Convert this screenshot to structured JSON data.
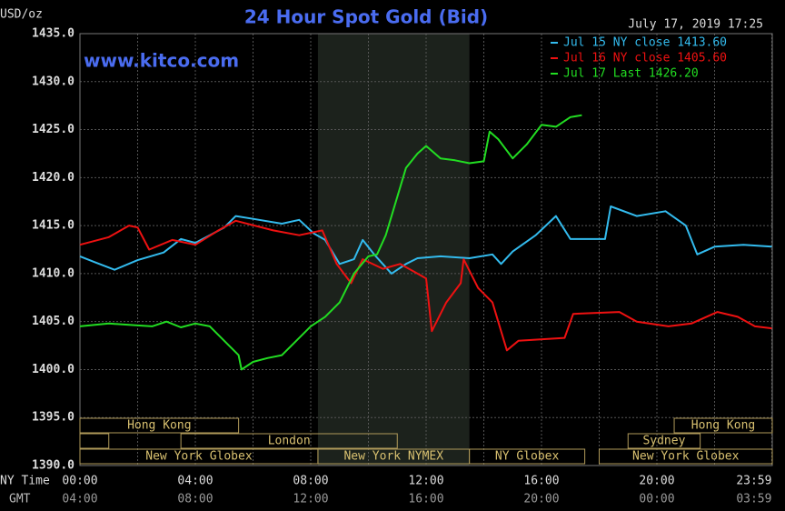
{
  "chart_data": {
    "type": "line",
    "title": "24 Hour Spot Gold (Bid)",
    "y_unit": "USD/oz",
    "timestamp": "July 17, 2019 17:25",
    "source": "www.kitco.com",
    "x_axis_labels": [
      "NY Time",
      "GMT"
    ],
    "xlim": [
      0,
      24
    ],
    "ylim": [
      1390,
      1435
    ],
    "xticks": [
      {
        "value": 0,
        "label": "00:00"
      },
      {
        "value": 4,
        "label": "04:00"
      },
      {
        "value": 8,
        "label": "08:00"
      },
      {
        "value": 12,
        "label": "12:00"
      },
      {
        "value": 16,
        "label": "16:00"
      },
      {
        "value": 20,
        "label": "20:00"
      },
      {
        "value": 23.983,
        "label": "23:59"
      }
    ],
    "x2ticks": [
      {
        "value": 0,
        "label": "04:00"
      },
      {
        "value": 4,
        "label": "08:00"
      },
      {
        "value": 8,
        "label": "12:00"
      },
      {
        "value": 12,
        "label": "16:00"
      },
      {
        "value": 16,
        "label": "20:00"
      },
      {
        "value": 20,
        "label": "00:00"
      },
      {
        "value": 23.983,
        "label": "03:59"
      }
    ],
    "xminor": [
      2,
      6,
      10,
      14,
      18,
      22
    ],
    "yticks": [
      {
        "value": 1390,
        "label": "1390.0"
      },
      {
        "value": 1395,
        "label": "1395.0"
      },
      {
        "value": 1400,
        "label": "1400.0"
      },
      {
        "value": 1405,
        "label": "1405.0"
      },
      {
        "value": 1410,
        "label": "1410.0"
      },
      {
        "value": 1415,
        "label": "1415.0"
      },
      {
        "value": 1420,
        "label": "1420.0"
      },
      {
        "value": 1425,
        "label": "1425.0"
      },
      {
        "value": 1430,
        "label": "1430.0"
      },
      {
        "value": 1435,
        "label": "1435.0"
      }
    ],
    "grid": true,
    "session_rows": [
      [
        {
          "label": "Hong Kong",
          "start": 0,
          "end": 5.5
        },
        {
          "label": "Hong Kong",
          "start": 20.6,
          "end": 24
        }
      ],
      [
        {
          "start": 0,
          "end": 1
        },
        {
          "label": "London",
          "start": 3.5,
          "end": 11
        },
        {
          "label": "Sydney",
          "start": 19,
          "end": 21.5
        }
      ],
      [
        {
          "label": "New York Globex",
          "start": 0,
          "end": 8.25
        },
        {
          "label": "New York NYMEX",
          "start": 8.25,
          "end": 13.5,
          "shaded": true
        },
        {
          "label": "NY Globex",
          "start": 13.5,
          "end": 17.5
        },
        {
          "label": "New York Globex",
          "start": 18,
          "end": 24
        }
      ]
    ],
    "series": [
      {
        "name": "Jul 15 NY close 1413.60",
        "color": "#33bbee",
        "x": [
          0,
          0.5,
          1.2,
          2,
          2.9,
          3.5,
          4,
          4.5,
          5,
          5.4,
          6,
          7,
          7.6,
          8.1,
          8.5,
          9,
          9.5,
          9.8,
          10.2,
          10.8,
          11.3,
          11.7,
          12.5,
          13.5,
          14.3,
          14.6,
          15,
          15.8,
          16.5,
          17,
          18.2,
          18.4,
          19.3,
          20.3,
          21,
          21.4,
          22,
          23,
          23.983
        ],
        "values": [
          1411.8,
          1411.2,
          1410.4,
          1411.4,
          1412.2,
          1413.6,
          1413.2,
          1414,
          1414.8,
          1416,
          1415.7,
          1415.2,
          1415.6,
          1414.2,
          1413.5,
          1411,
          1411.5,
          1413.5,
          1412,
          1410,
          1411,
          1411.6,
          1411.8,
          1411.6,
          1412,
          1411,
          1412.3,
          1414,
          1416,
          1413.6,
          1413.6,
          1417,
          1416,
          1416.5,
          1415,
          1412,
          1412.8,
          1413,
          1412.8
        ]
      },
      {
        "name": "Jul 16 NY close 1405.60",
        "color": "#ee1111",
        "x": [
          0,
          1,
          1.7,
          2,
          2.4,
          3.2,
          4,
          4.8,
          5.4,
          6.7,
          7.6,
          8.4,
          8.9,
          9.4,
          9.8,
          10.5,
          11.1,
          11.7,
          12,
          12.2,
          12.7,
          13.2,
          13.3,
          13.8,
          14.3,
          14.6,
          14.8,
          15.2,
          16.8,
          17.1,
          18.7,
          19.3,
          20.4,
          21.2,
          22.1,
          22.8,
          23.4,
          23.983
        ],
        "values": [
          1413,
          1413.8,
          1415,
          1414.8,
          1412.5,
          1413.5,
          1413,
          1414.5,
          1415.5,
          1414.5,
          1414,
          1414.5,
          1411,
          1409,
          1411.5,
          1410.5,
          1411,
          1410,
          1409.5,
          1404,
          1407,
          1409,
          1411.5,
          1408.5,
          1407,
          1404,
          1402,
          1403,
          1403.3,
          1405.8,
          1406,
          1405,
          1404.5,
          1404.8,
          1406,
          1405.5,
          1404.5,
          1404.3
        ]
      },
      {
        "name": "Jul 17 Last 1426.20",
        "color": "#22dd22",
        "x": [
          0,
          1,
          2,
          2.5,
          3,
          3.5,
          4,
          4.5,
          5,
          5.5,
          5.6,
          6,
          6.5,
          7,
          7.5,
          8,
          8.5,
          9,
          9.5,
          10,
          10.3,
          10.6,
          11,
          11.3,
          11.7,
          12,
          12.5,
          13,
          13.5,
          14,
          14.2,
          14.5,
          15,
          15.5,
          16,
          16.5,
          17,
          17.4
        ],
        "values": [
          1404.5,
          1404.8,
          1404.6,
          1404.5,
          1405,
          1404.4,
          1404.8,
          1404.5,
          1403,
          1401.5,
          1400,
          1400.8,
          1401.2,
          1401.5,
          1403,
          1404.5,
          1405.5,
          1407,
          1410,
          1411.8,
          1412,
          1414,
          1418,
          1421,
          1422.5,
          1423.3,
          1422,
          1421.8,
          1421.5,
          1421.7,
          1424.8,
          1424,
          1422,
          1423.5,
          1425.5,
          1425.3,
          1426.3,
          1426.5
        ]
      }
    ]
  }
}
